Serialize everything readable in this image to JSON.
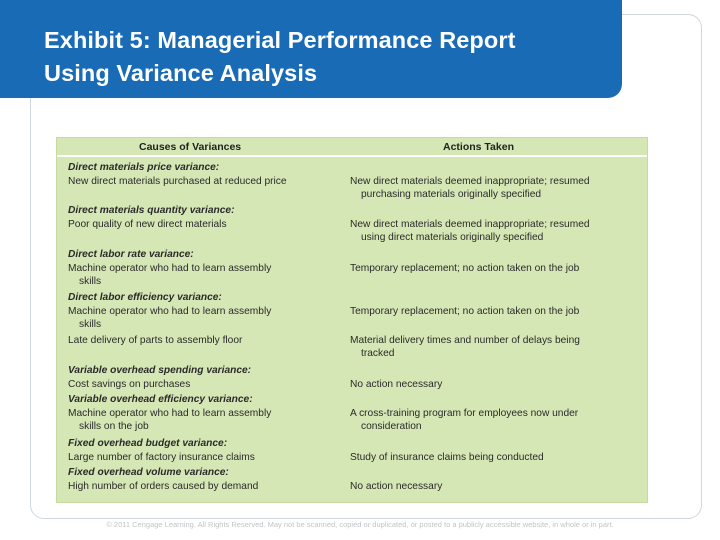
{
  "title": {
    "line1": "Exhibit 5: Managerial Performance Report",
    "line2": "Using Variance Analysis"
  },
  "table": {
    "col_left": "Causes of Variances",
    "col_right": "Actions Taken",
    "sections": [
      {
        "heading": "Direct materials price variance:",
        "rows": [
          {
            "cause": [
              "New direct materials purchased at reduced price"
            ],
            "action": [
              "New direct materials deemed inappropriate; resumed",
              "purchasing materials originally specified"
            ]
          }
        ]
      },
      {
        "heading": "Direct materials quantity variance:",
        "rows": [
          {
            "cause": [
              "Poor quality of new direct materials"
            ],
            "action": [
              "New direct materials deemed inappropriate; resumed",
              "using direct materials originally specified"
            ]
          }
        ]
      },
      {
        "heading": "Direct labor rate variance:",
        "rows": [
          {
            "cause": [
              "Machine operator who had to learn assembly",
              "skills"
            ],
            "action": [
              "Temporary replacement; no action taken on the job"
            ]
          }
        ]
      },
      {
        "heading": "Direct labor efficiency variance:",
        "rows": [
          {
            "cause": [
              "Machine operator who had to learn assembly",
              "skills"
            ],
            "action": [
              "Temporary replacement; no action taken on the job"
            ]
          },
          {
            "cause": [
              "Late delivery of parts to assembly floor"
            ],
            "action": [
              "Material delivery times and number of delays being",
              "tracked"
            ]
          }
        ]
      },
      {
        "heading": "Variable overhead spending variance:",
        "rows": [
          {
            "cause": [
              "Cost savings on purchases"
            ],
            "action": [
              "No action necessary"
            ]
          }
        ]
      },
      {
        "heading": "Variable overhead efficiency variance:",
        "rows": [
          {
            "cause": [
              "Machine operator who had to learn assembly",
              "skills on the job"
            ],
            "action": [
              "A cross-training program for employees now under",
              "consideration"
            ]
          }
        ]
      },
      {
        "heading": "Fixed overhead budget variance:",
        "rows": [
          {
            "cause": [
              "Large number of factory insurance claims"
            ],
            "action": [
              "Study of insurance claims being conducted"
            ]
          }
        ]
      },
      {
        "heading": "Fixed overhead volume variance:",
        "rows": [
          {
            "cause": [
              "High number of orders caused by demand"
            ],
            "action": [
              "No action necessary"
            ]
          }
        ]
      }
    ]
  },
  "footer": "© 2011 Cengage Learning. All Rights Reserved. May not be scanned, copied or duplicated, or posted to a publicly accessible website, in whole or in part."
}
